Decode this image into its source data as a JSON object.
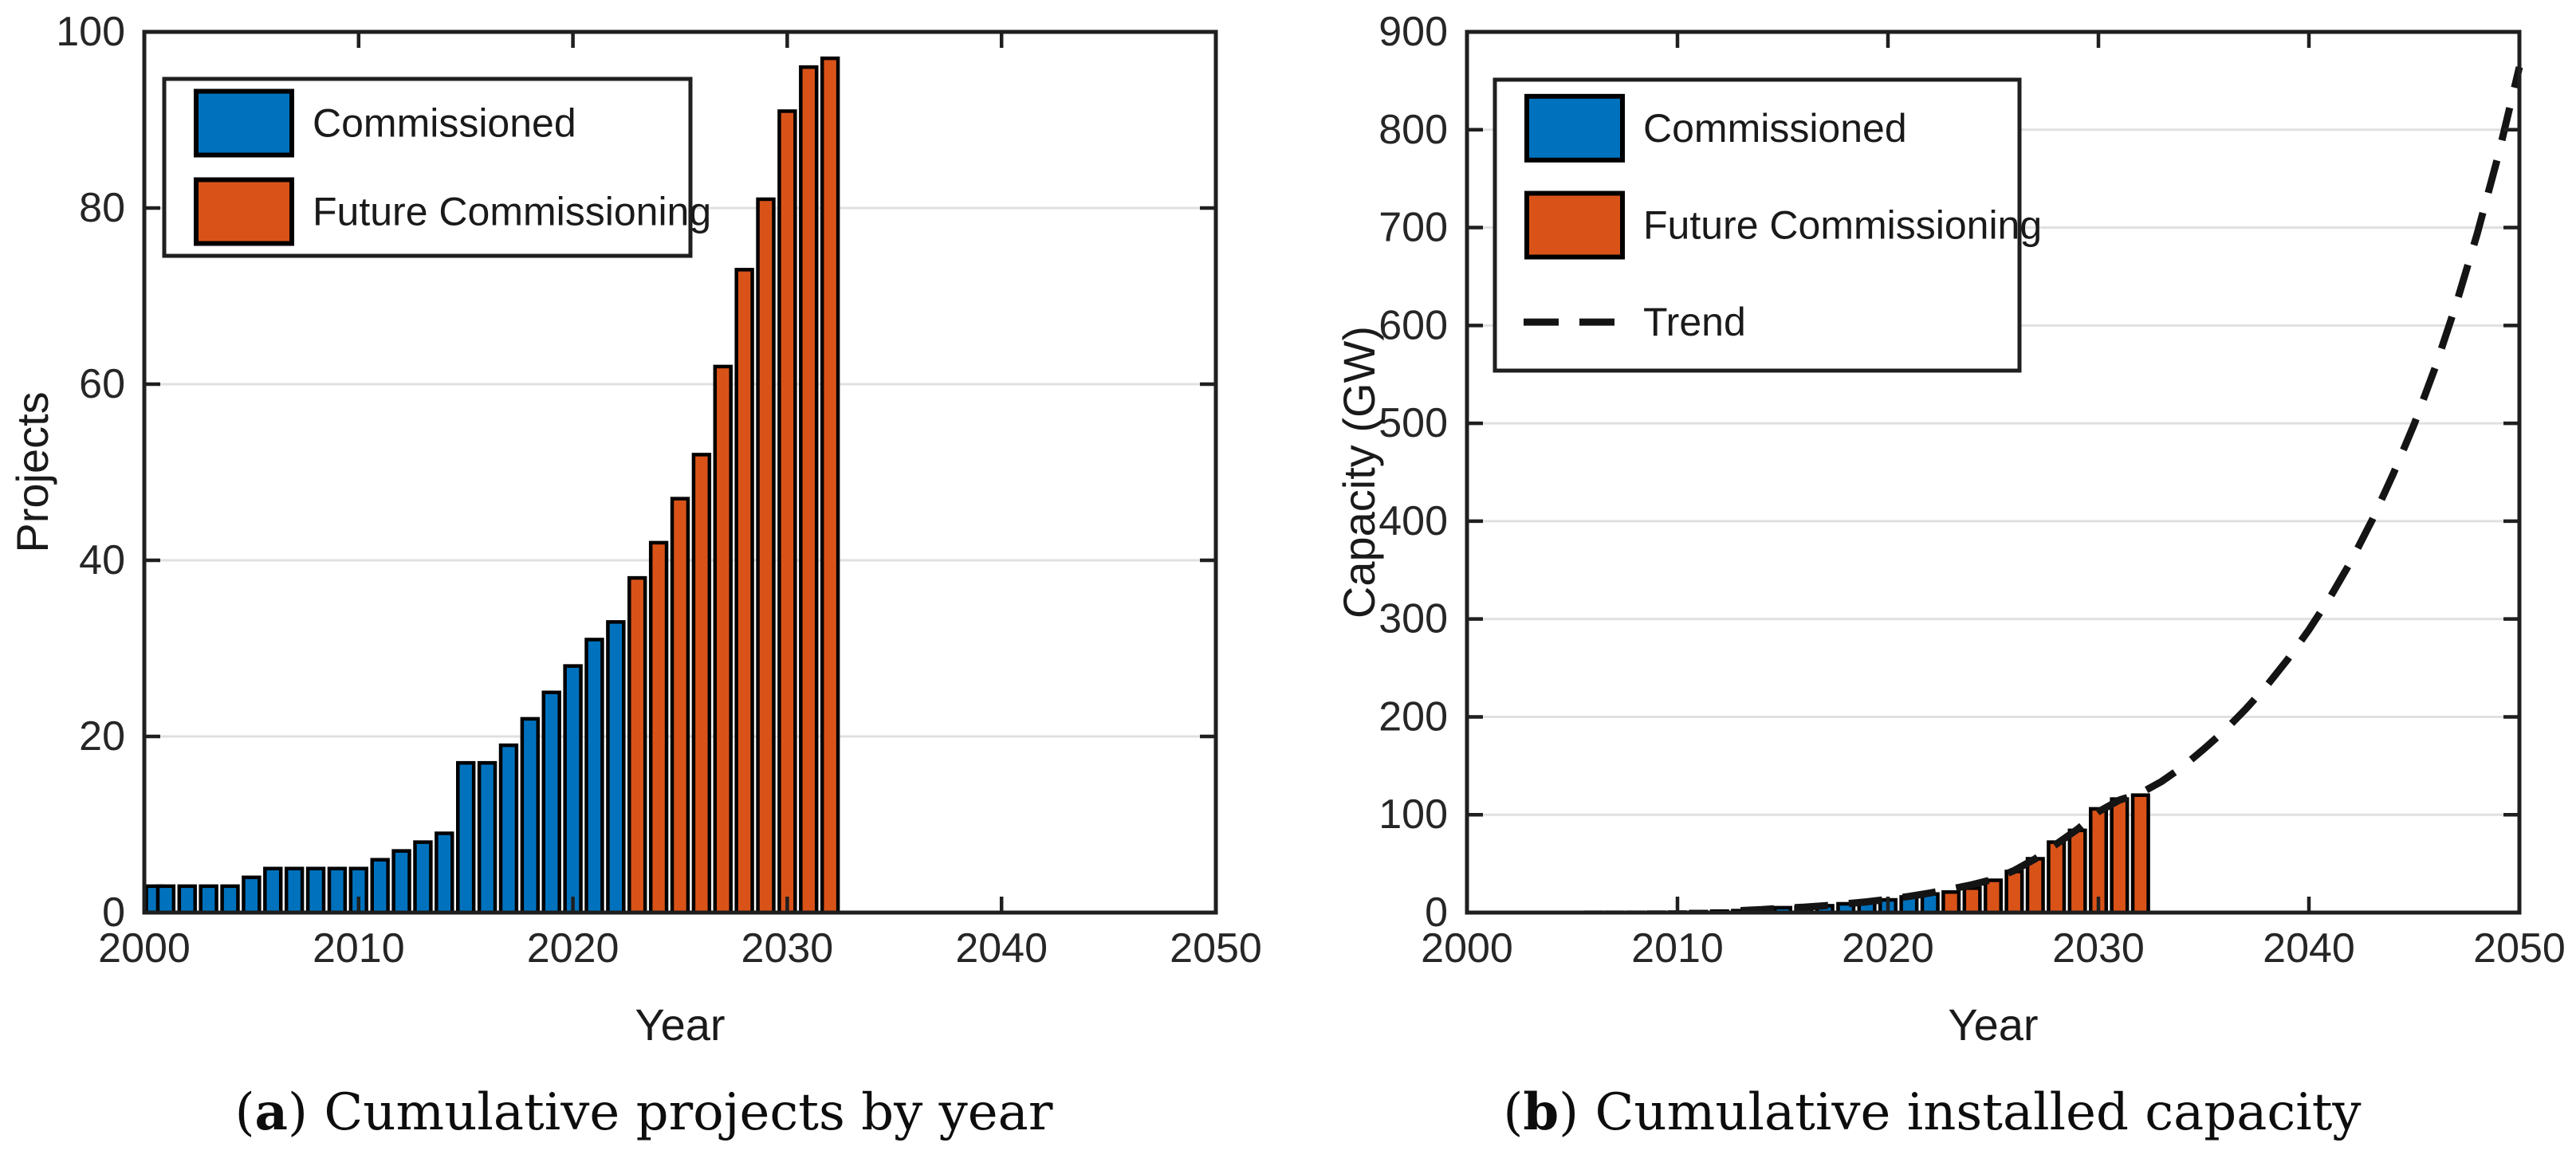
{
  "figure": {
    "background": "#ffffff"
  },
  "colors": {
    "commissioned": "#0072BD",
    "future_commissioning": "#D95319",
    "trend": "#141414",
    "bar_edge": "#000000",
    "grid": "#E0E0E0",
    "axis": "#1F1F1F",
    "tick_text": "#262626"
  },
  "legend": {
    "commissioned_label": "Commissioned",
    "future_label": "Future Commissioning",
    "trend_label": "Trend"
  },
  "captions": {
    "a": {
      "open": "(",
      "letter": "a",
      "close": ")",
      "text": " Cumulative projects by year",
      "full": "(a) Cumulative projects by year"
    },
    "b": {
      "open": "(",
      "letter": "b",
      "close": ")",
      "text": " Cumulative installed capacity",
      "full": "(b) Cumulative installed capacity"
    }
  },
  "chart_data": [
    {
      "type": "bar",
      "panel": "a",
      "title": "(a) Cumulative projects by year",
      "xlabel": "Year",
      "ylabel": "Projects",
      "xlim": [
        2000,
        2050
      ],
      "ylim": [
        0,
        100
      ],
      "xticks": [
        2000,
        2010,
        2020,
        2030,
        2040,
        2050
      ],
      "yticks": [
        0,
        20,
        40,
        60,
        80,
        100
      ],
      "grid": "horizontal",
      "legend_position": "top-left",
      "legend_entries": [
        "Commissioned",
        "Future Commissioning"
      ],
      "series": [
        {
          "name": "Commissioned",
          "color": "#0072BD",
          "years": [
            2000,
            2001,
            2002,
            2003,
            2004,
            2005,
            2006,
            2007,
            2008,
            2009,
            2010,
            2011,
            2012,
            2013,
            2014,
            2015,
            2016,
            2017,
            2018,
            2019,
            2020,
            2021,
            2022
          ],
          "values": [
            3,
            3,
            3,
            3,
            3,
            4,
            5,
            5,
            5,
            5,
            5,
            6,
            7,
            8,
            9,
            17,
            17,
            19,
            22,
            25,
            28,
            31,
            33
          ]
        },
        {
          "name": "Future Commissioning",
          "color": "#D95319",
          "years": [
            2023,
            2024,
            2025,
            2026,
            2027,
            2028,
            2029,
            2030,
            2031,
            2032
          ],
          "values": [
            38,
            42,
            47,
            52,
            62,
            73,
            81,
            91,
            96,
            97
          ]
        }
      ]
    },
    {
      "type": "bar+line",
      "panel": "b",
      "title": "(b) Cumulative installed capacity",
      "xlabel": "Year",
      "ylabel": "Capacity (GW)",
      "xlim": [
        2000,
        2050
      ],
      "ylim": [
        0,
        900
      ],
      "xticks": [
        2000,
        2010,
        2020,
        2030,
        2040,
        2050
      ],
      "yticks": [
        0,
        100,
        200,
        300,
        400,
        500,
        600,
        700,
        800,
        900
      ],
      "grid": "horizontal",
      "legend_position": "top-left",
      "legend_entries": [
        "Commissioned",
        "Future Commissioning",
        "Trend"
      ],
      "series": [
        {
          "name": "Commissioned",
          "color": "#0072BD",
          "years": [
            2000,
            2001,
            2002,
            2003,
            2004,
            2005,
            2006,
            2007,
            2008,
            2009,
            2010,
            2011,
            2012,
            2013,
            2014,
            2015,
            2016,
            2017,
            2018,
            2019,
            2020,
            2021,
            2022
          ],
          "values": [
            0.1,
            0.1,
            0.1,
            0.1,
            0.1,
            0.2,
            0.3,
            0.3,
            0.3,
            0.4,
            0.5,
            1,
            1.5,
            2,
            3,
            5,
            5.5,
            7,
            9,
            11,
            13,
            16,
            19
          ]
        },
        {
          "name": "Future Commissioning",
          "color": "#D95319",
          "years": [
            2023,
            2024,
            2025,
            2026,
            2027,
            2028,
            2029,
            2030,
            2031,
            2032
          ],
          "values": [
            21,
            25,
            33,
            42,
            55,
            72,
            84,
            106,
            116,
            120
          ]
        },
        {
          "name": "Trend",
          "type": "line",
          "style": "dashed",
          "color": "#141414",
          "points": [
            [
              2013,
              2
            ],
            [
              2014,
              3
            ],
            [
              2015,
              4.5
            ],
            [
              2016,
              5.5
            ],
            [
              2017,
              7
            ],
            [
              2018,
              9
            ],
            [
              2019,
              11
            ],
            [
              2020,
              13.5
            ],
            [
              2021,
              16.5
            ],
            [
              2022,
              20
            ],
            [
              2023,
              24
            ],
            [
              2024,
              28.5
            ],
            [
              2025,
              34
            ],
            [
              2026,
              43
            ],
            [
              2027,
              55
            ],
            [
              2028,
              70
            ],
            [
              2029,
              85
            ],
            [
              2030,
              103
            ],
            [
              2031,
              115
            ],
            [
              2032,
              122
            ],
            [
              2033,
              134
            ],
            [
              2034,
              149
            ],
            [
              2035,
              167
            ],
            [
              2036,
              186
            ],
            [
              2037,
              208
            ],
            [
              2038,
              232
            ],
            [
              2039,
              259
            ],
            [
              2040,
              289
            ],
            [
              2041,
              322
            ],
            [
              2042,
              359
            ],
            [
              2043,
              401
            ],
            [
              2044,
              448
            ],
            [
              2045,
              499
            ],
            [
              2046,
              557
            ],
            [
              2047,
              622
            ],
            [
              2048,
              694
            ],
            [
              2049,
              774
            ],
            [
              2050,
              864
            ]
          ]
        }
      ]
    }
  ]
}
